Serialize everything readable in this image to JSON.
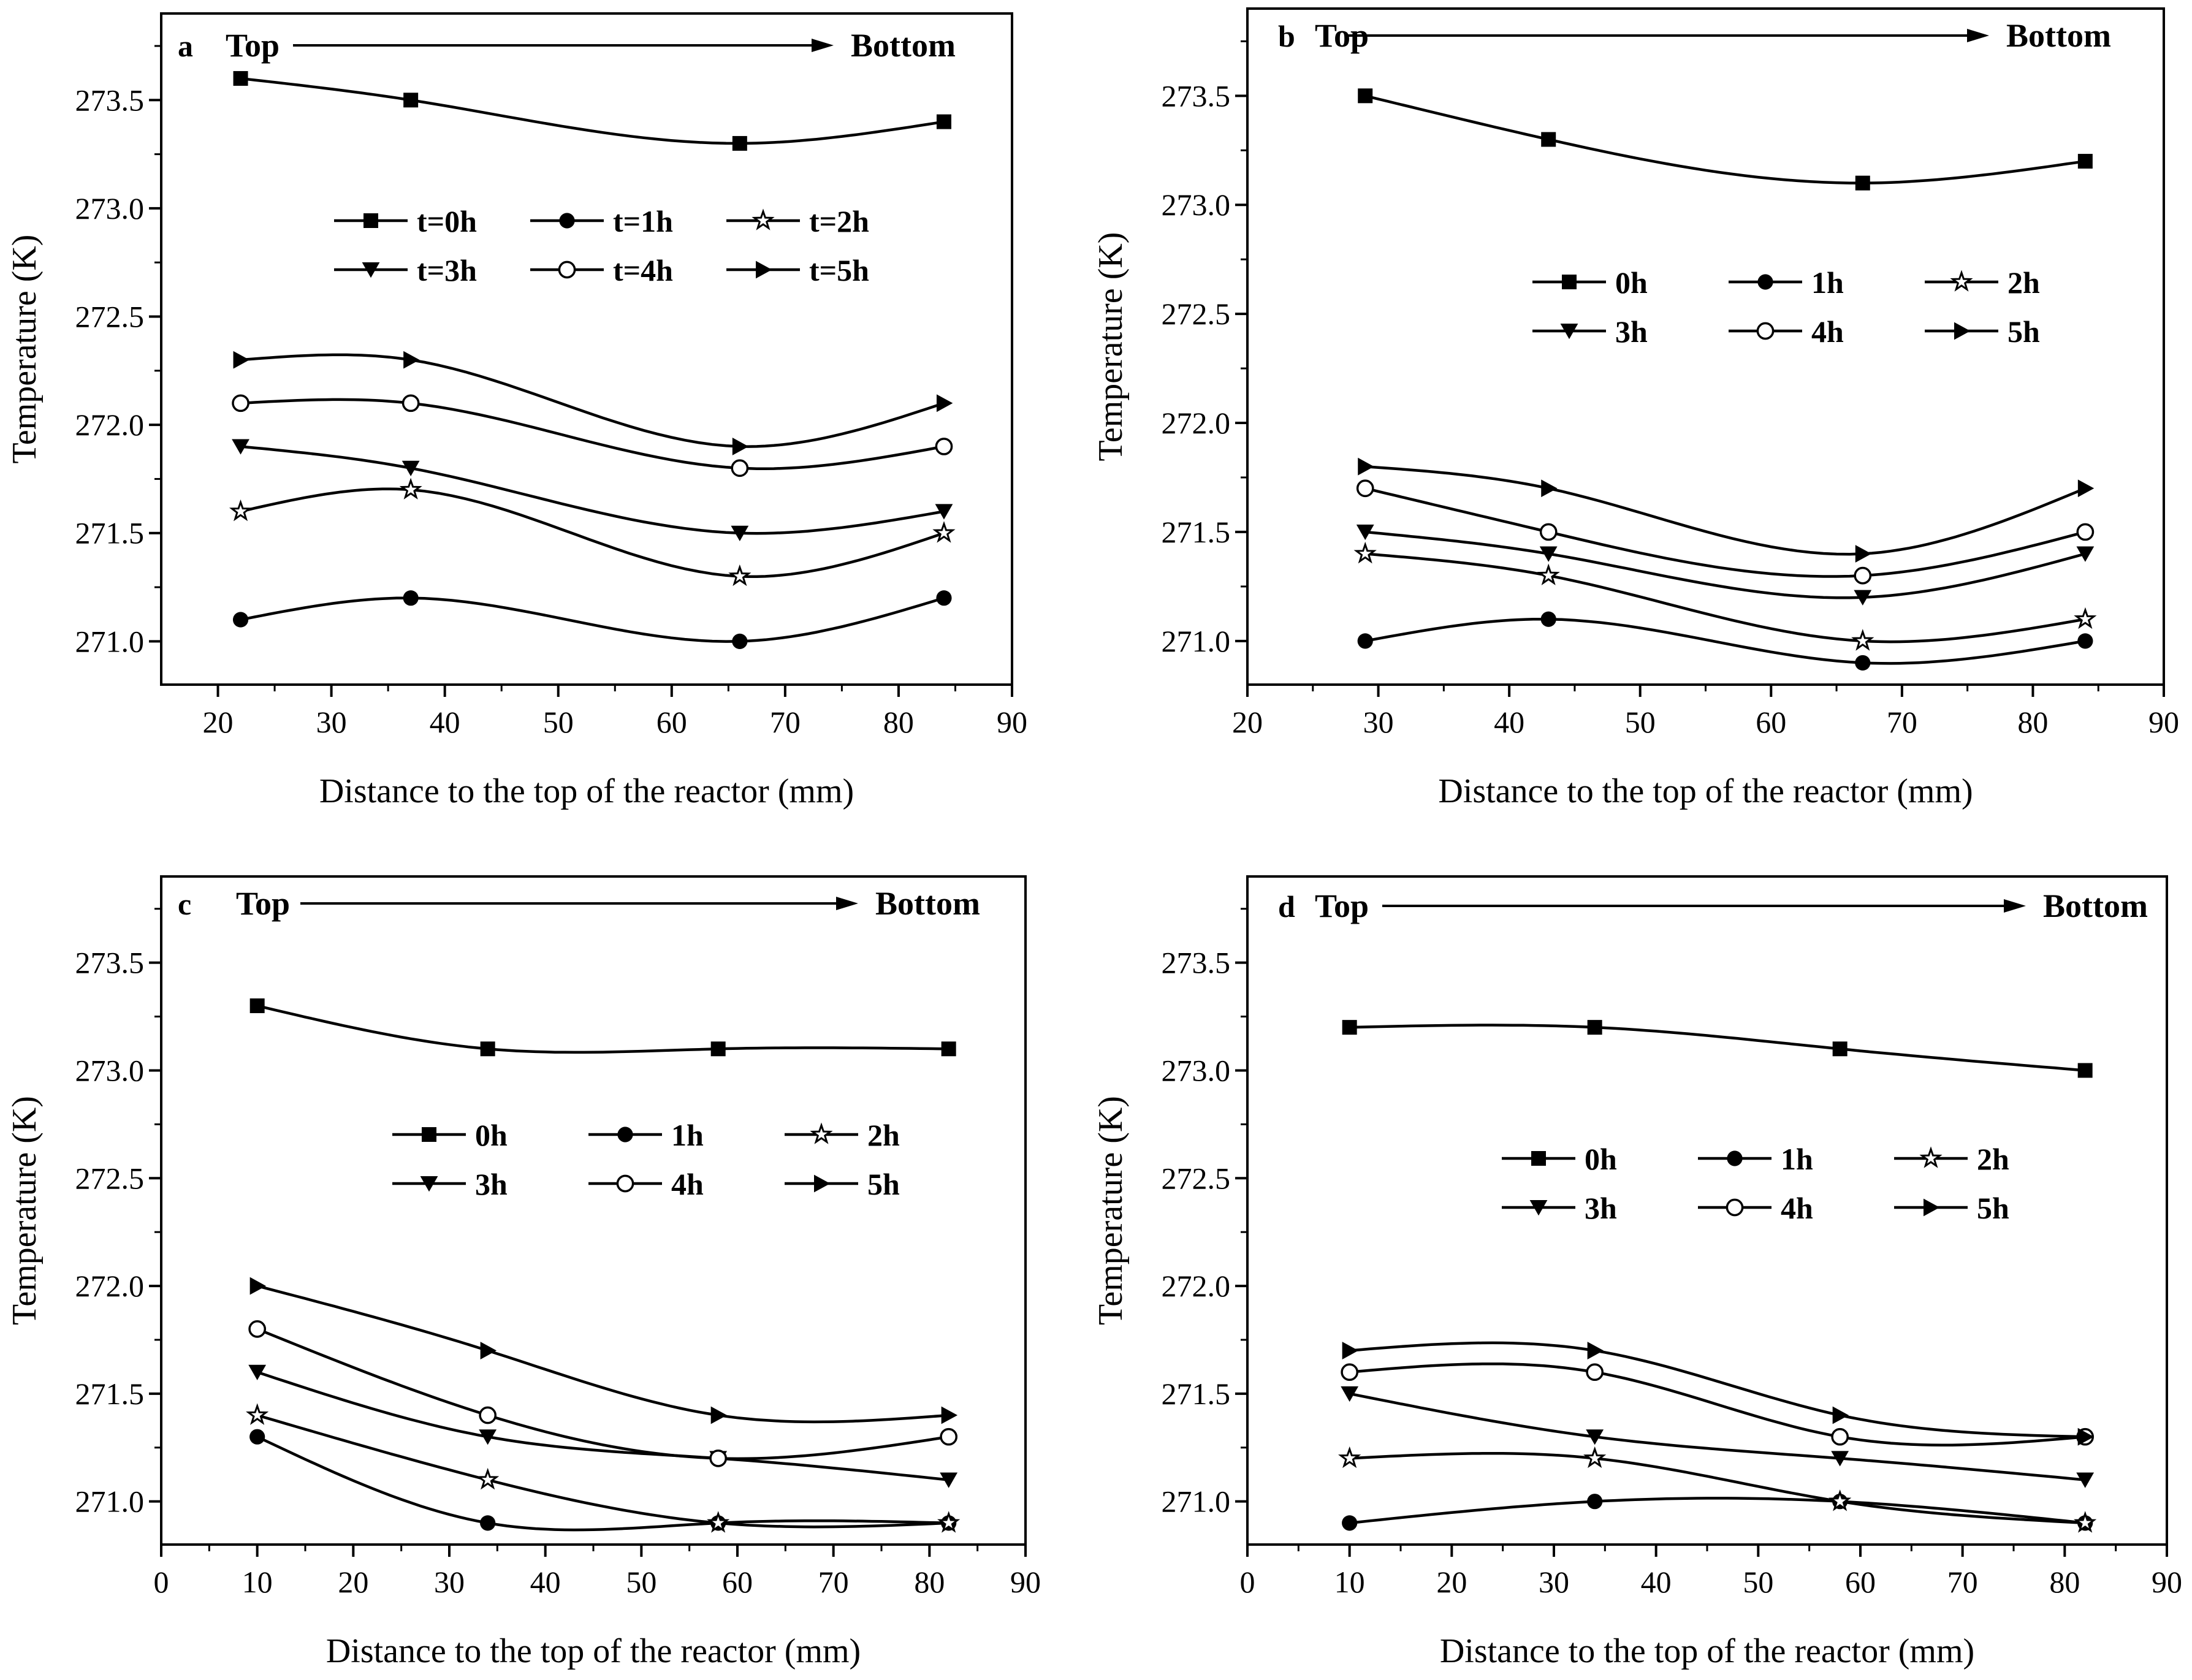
{
  "figure": {
    "panels": [
      {
        "id": "a",
        "letter": "a",
        "top_label": "Top",
        "bottom_label": "Bottom",
        "xlabel": "Distance to the top of the reactor (mm)",
        "ylabel": "Temperature (K)",
        "xlim": [
          15,
          90
        ],
        "xticks": [
          20,
          30,
          40,
          50,
          60,
          70,
          80,
          90
        ],
        "ylim": [
          270.8,
          273.9
        ],
        "yticks": [
          271.0,
          271.5,
          272.0,
          272.5,
          273.0,
          273.5
        ],
        "x": [
          22,
          37,
          66,
          84
        ],
        "legend": [
          "t=0h",
          "t=1h",
          "t=2h",
          "t=3h",
          "t=4h",
          "t=5h"
        ]
      },
      {
        "id": "b",
        "letter": "b",
        "top_label": "Top",
        "bottom_label": "Bottom",
        "xlabel": "Distance to the top of the reactor (mm)",
        "ylabel": "Temperature (K)",
        "xlim": [
          20,
          90
        ],
        "xticks": [
          20,
          30,
          40,
          50,
          60,
          70,
          80,
          90
        ],
        "ylim": [
          270.8,
          273.9
        ],
        "yticks": [
          271.0,
          271.5,
          272.0,
          272.5,
          273.0,
          273.5
        ],
        "x": [
          29,
          43,
          67,
          84
        ],
        "legend": [
          "0h",
          "1h",
          "2h",
          "3h",
          "4h",
          "5h"
        ]
      },
      {
        "id": "c",
        "letter": "c",
        "top_label": "Top",
        "bottom_label": "Bottom",
        "xlabel": "Distance to the top of the reactor (mm)",
        "ylabel": "Temperature (K)",
        "xlim": [
          0,
          90
        ],
        "xticks": [
          0,
          10,
          20,
          30,
          40,
          50,
          60,
          70,
          80,
          90
        ],
        "ylim": [
          270.8,
          273.9
        ],
        "yticks": [
          271.0,
          271.5,
          272.0,
          272.5,
          273.0,
          273.5
        ],
        "x": [
          10,
          34,
          58,
          82
        ],
        "legend": [
          "0h",
          "1h",
          "2h",
          "3h",
          "4h",
          "5h"
        ]
      },
      {
        "id": "d",
        "letter": "d",
        "top_label": "Top",
        "bottom_label": "Bottom",
        "xlabel": "Distance to the top of the reactor (mm)",
        "ylabel": "Temperature (K)",
        "xlim": [
          0,
          90
        ],
        "xticks": [
          0,
          10,
          20,
          30,
          40,
          50,
          60,
          70,
          80,
          90
        ],
        "ylim": [
          270.8,
          273.9
        ],
        "yticks": [
          271.0,
          271.5,
          272.0,
          272.5,
          273.0,
          273.5
        ],
        "x": [
          10,
          34,
          58,
          82
        ],
        "legend": [
          "0h",
          "1h",
          "2h",
          "3h",
          "4h",
          "5h"
        ]
      }
    ]
  },
  "chart_data": [
    {
      "type": "line",
      "panel": "a",
      "x": [
        22,
        37,
        66,
        84
      ],
      "xlabel": "Distance to the top of the reactor (mm)",
      "ylabel": "Temperature (K)",
      "xlim": [
        15,
        90
      ],
      "ylim": [
        270.8,
        273.9
      ],
      "series": [
        {
          "name": "t=0h",
          "marker": "square",
          "values": [
            273.6,
            273.5,
            273.3,
            273.4
          ]
        },
        {
          "name": "t=1h",
          "marker": "circle",
          "values": [
            271.1,
            271.2,
            271.0,
            271.2
          ]
        },
        {
          "name": "t=2h",
          "marker": "star",
          "values": [
            271.6,
            271.7,
            271.3,
            271.5
          ]
        },
        {
          "name": "t=3h",
          "marker": "triangle-down",
          "values": [
            271.9,
            271.8,
            271.5,
            271.6
          ]
        },
        {
          "name": "t=4h",
          "marker": "circle-open",
          "values": [
            272.1,
            272.1,
            271.8,
            271.9
          ]
        },
        {
          "name": "t=5h",
          "marker": "triangle-right",
          "values": [
            272.3,
            272.3,
            271.9,
            272.1
          ]
        }
      ]
    },
    {
      "type": "line",
      "panel": "b",
      "x": [
        29,
        43,
        67,
        84
      ],
      "xlabel": "Distance to the top of the reactor (mm)",
      "ylabel": "Temperature (K)",
      "xlim": [
        20,
        90
      ],
      "ylim": [
        270.8,
        273.9
      ],
      "series": [
        {
          "name": "0h",
          "marker": "square",
          "values": [
            273.5,
            273.3,
            273.1,
            273.2
          ]
        },
        {
          "name": "1h",
          "marker": "circle",
          "values": [
            271.0,
            271.1,
            270.9,
            271.0
          ]
        },
        {
          "name": "2h",
          "marker": "star",
          "values": [
            271.4,
            271.3,
            271.0,
            271.1
          ]
        },
        {
          "name": "3h",
          "marker": "triangle-down",
          "values": [
            271.5,
            271.4,
            271.2,
            271.4
          ]
        },
        {
          "name": "4h",
          "marker": "circle-open",
          "values": [
            271.7,
            271.5,
            271.3,
            271.5
          ]
        },
        {
          "name": "5h",
          "marker": "triangle-right",
          "values": [
            271.8,
            271.7,
            271.4,
            271.7
          ]
        }
      ]
    },
    {
      "type": "line",
      "panel": "c",
      "x": [
        10,
        34,
        58,
        82
      ],
      "xlabel": "Distance to the top of the reactor (mm)",
      "ylabel": "Temperature (K)",
      "xlim": [
        0,
        90
      ],
      "ylim": [
        270.8,
        273.9
      ],
      "series": [
        {
          "name": "0h",
          "marker": "square",
          "values": [
            273.3,
            273.1,
            273.1,
            273.1
          ]
        },
        {
          "name": "1h",
          "marker": "circle",
          "values": [
            271.3,
            270.9,
            270.9,
            270.9
          ]
        },
        {
          "name": "2h",
          "marker": "star",
          "values": [
            271.4,
            271.1,
            270.9,
            270.9
          ]
        },
        {
          "name": "3h",
          "marker": "triangle-down",
          "values": [
            271.6,
            271.3,
            271.2,
            271.1
          ]
        },
        {
          "name": "4h",
          "marker": "circle-open",
          "values": [
            271.8,
            271.4,
            271.2,
            271.3
          ]
        },
        {
          "name": "5h",
          "marker": "triangle-right",
          "values": [
            272.0,
            271.7,
            271.4,
            271.4
          ]
        }
      ]
    },
    {
      "type": "line",
      "panel": "d",
      "x": [
        10,
        34,
        58,
        82
      ],
      "xlabel": "Distance to the top of the reactor (mm)",
      "ylabel": "Temperature (K)",
      "xlim": [
        0,
        90
      ],
      "ylim": [
        270.8,
        273.9
      ],
      "series": [
        {
          "name": "0h",
          "marker": "square",
          "values": [
            273.2,
            273.2,
            273.1,
            273.0
          ]
        },
        {
          "name": "1h",
          "marker": "circle",
          "values": [
            270.9,
            271.0,
            271.0,
            270.9
          ]
        },
        {
          "name": "2h",
          "marker": "star",
          "values": [
            271.2,
            271.2,
            271.0,
            270.9
          ]
        },
        {
          "name": "3h",
          "marker": "triangle-down",
          "values": [
            271.5,
            271.3,
            271.2,
            271.1
          ]
        },
        {
          "name": "4h",
          "marker": "circle-open",
          "values": [
            271.6,
            271.6,
            271.3,
            271.3
          ]
        },
        {
          "name": "5h",
          "marker": "triangle-right",
          "values": [
            271.7,
            271.7,
            271.4,
            271.3
          ]
        }
      ]
    }
  ]
}
